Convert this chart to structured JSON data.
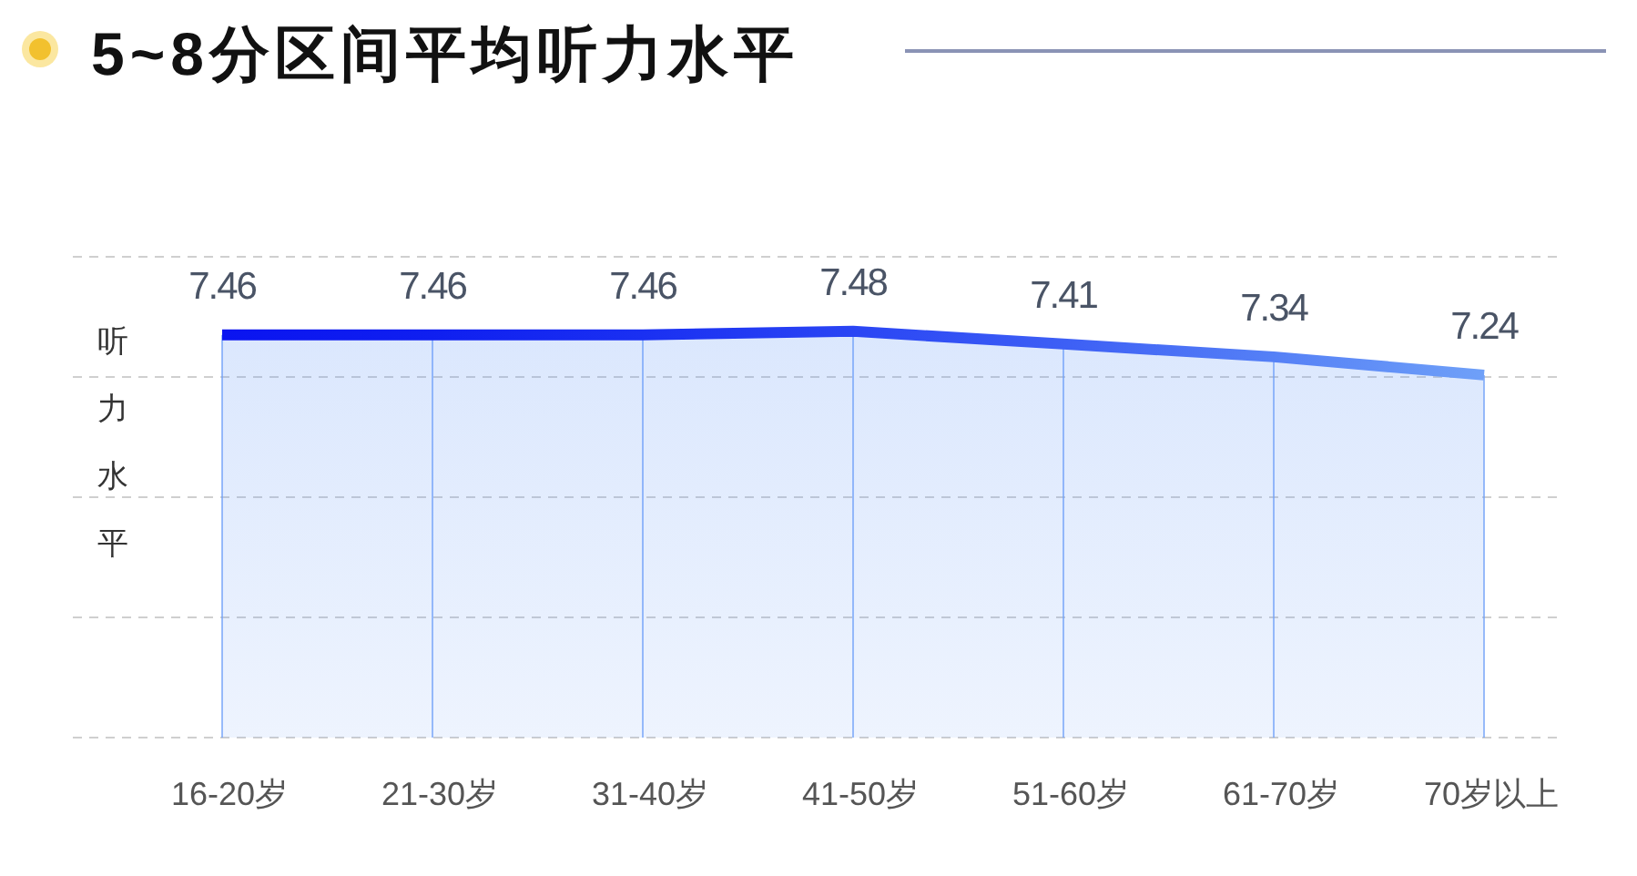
{
  "chart_data": {
    "type": "area",
    "title": "5~8分区间平均听力水平",
    "ylabel": "听力水平",
    "categories": [
      "16-20岁",
      "21-30岁",
      "31-40岁",
      "41-50岁",
      "51-60岁",
      "61-70岁",
      "70岁以上"
    ],
    "values": [
      7.46,
      7.46,
      7.46,
      7.48,
      7.41,
      7.34,
      7.24
    ],
    "colors": [
      "#0a14f0",
      "#0f1ff0",
      "#1a30f2",
      "#2a45f4",
      "#3d5ff5",
      "#5580f6",
      "#6fa0f8"
    ],
    "grid": true,
    "tick_labels": "x",
    "data_labels": true
  }
}
